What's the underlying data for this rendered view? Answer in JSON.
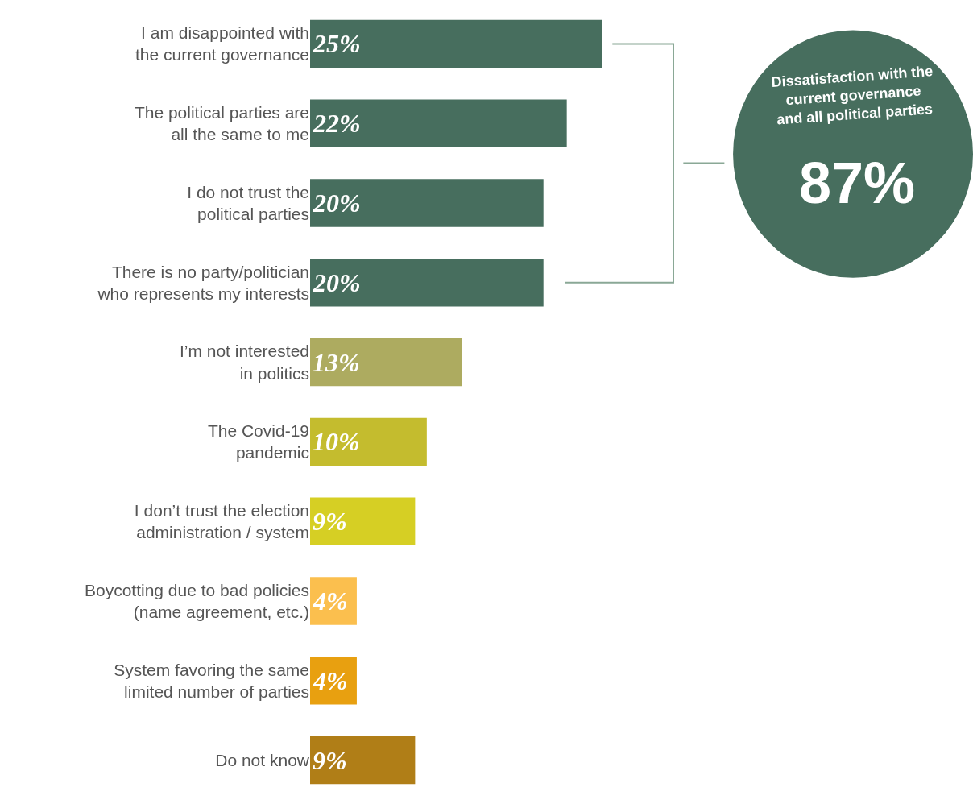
{
  "chart_data": {
    "type": "bar",
    "orientation": "horizontal",
    "categories": [
      "I am disappointed with\nthe current governance",
      "The political parties are\nall the same to me",
      "I do not trust the\npolitical parties",
      "There is no party/politician\nwho represents my interests",
      "I’m not interested\nin politics",
      "The Covid-19\npandemic",
      "I don’t trust the election\nadministration / system",
      "Boycotting due to bad policies\n(name agreement, etc.)",
      "System favoring the same\nlimited number of parties",
      "Do not know"
    ],
    "values": [
      25,
      22,
      20,
      20,
      13,
      10,
      9,
      4,
      4,
      9
    ],
    "colors": [
      "#476e5e",
      "#476e5e",
      "#476e5e",
      "#476e5e",
      "#adab60",
      "#c4bc2e",
      "#d6cf24",
      "#fbbf4e",
      "#e8a010",
      "#b07e17"
    ],
    "annotations": [
      "Dissatisfaction with the\ncurrent governance\nand all political parties",
      "87%"
    ],
    "value_labels": [
      "25%",
      "22%",
      "20%",
      "20%",
      "13%",
      "10%",
      "9%",
      "4%",
      "4%",
      "9%"
    ],
    "legend": false
  }
}
